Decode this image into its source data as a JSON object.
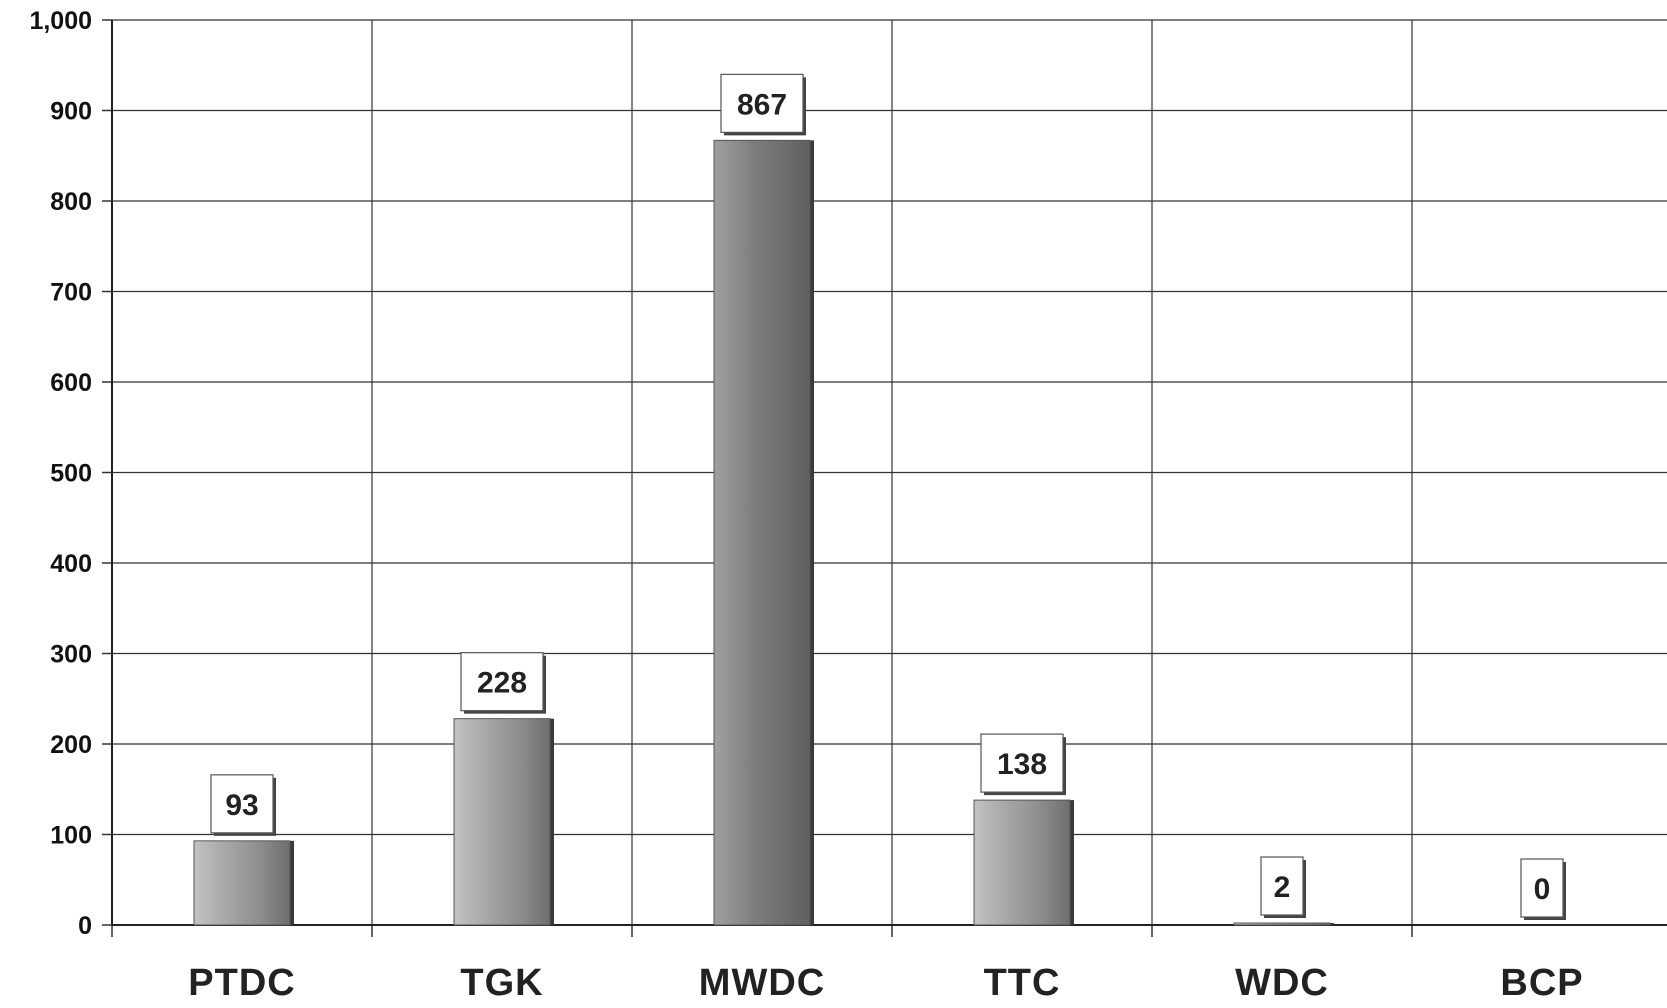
{
  "chart_data": {
    "type": "bar",
    "categories": [
      "PTDC",
      "TGK",
      "MWDC",
      "TTC",
      "WDC",
      "BCP"
    ],
    "values": [
      93,
      228,
      867,
      138,
      2,
      0
    ],
    "data_labels": [
      "93",
      "228",
      "867",
      "138",
      "2",
      "0"
    ],
    "y_ticks": [
      0,
      100,
      200,
      300,
      400,
      500,
      600,
      700,
      800,
      900,
      1000
    ],
    "y_tick_labels": [
      "0",
      "100",
      "200",
      "300",
      "400",
      "500",
      "600",
      "700",
      "800",
      "900",
      "1,000"
    ],
    "ylim": [
      0,
      1000
    ],
    "grid": true,
    "legend": "none",
    "bar_color": "#8e8e8e",
    "grid_color": "#333333"
  }
}
